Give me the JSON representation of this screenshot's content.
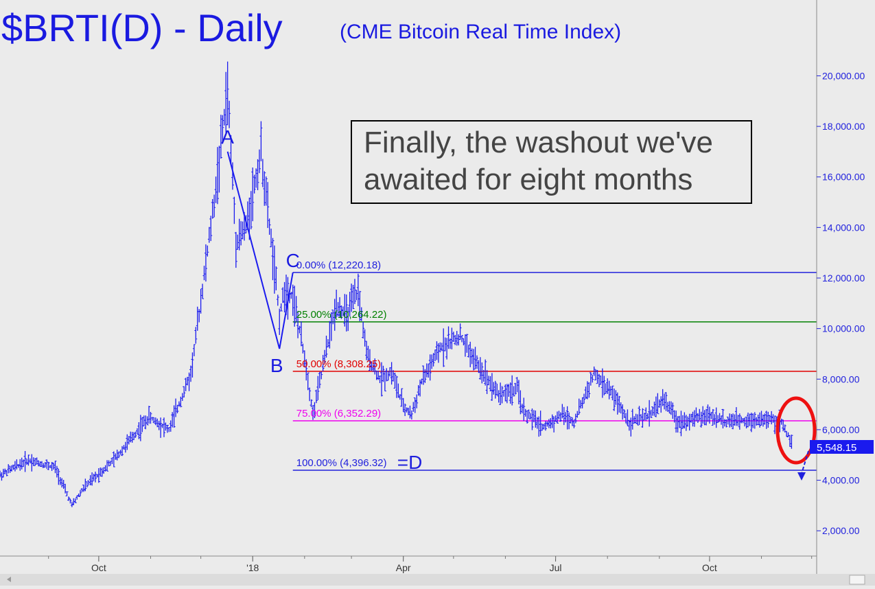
{
  "chart_data": {
    "type": "bar",
    "subtype": "ohlc",
    "title": "$BRTI(D) - Daily",
    "subtitle": "(CME Bitcoin Real Time Index)",
    "annotation_box": [
      "Finally, the washout we've",
      "awaited for eight months"
    ],
    "y_axis": {
      "position": "right",
      "range": [
        1000,
        23000
      ],
      "ticks": [
        2000,
        4000,
        6000,
        8000,
        10000,
        12000,
        14000,
        16000,
        18000,
        20000
      ],
      "tick_labels": [
        "2,000.00",
        "4,000.00",
        "6,000.00",
        "8,000.00",
        "10,000.00",
        "12,000.00",
        "14,000.00",
        "16,000.00",
        "18,000.00",
        "20,000.00"
      ]
    },
    "x_axis": {
      "range": [
        "2017-08-03",
        "2018-12-04"
      ],
      "tick_labels": [
        {
          "label": "Oct",
          "date": "2017-10-01"
        },
        {
          "label": "'18",
          "date": "2018-01-01"
        },
        {
          "label": "Apr",
          "date": "2018-04-01"
        },
        {
          "label": "Jul",
          "date": "2018-07-01"
        },
        {
          "label": "Oct",
          "date": "2018-10-01"
        }
      ]
    },
    "last_price": {
      "value": 5548.15,
      "label": "5,548.15"
    },
    "fib_levels": [
      {
        "label": "0.00% (12,220.18)",
        "value": 12220.18,
        "color": "#2020dd"
      },
      {
        "label": "25.00% (10,264.22)",
        "value": 10264.22,
        "color": "#008000"
      },
      {
        "label": "50.00% (8,308.25)",
        "value": 8308.25,
        "color": "#e00000"
      },
      {
        "label": "75.00% (6,352.29)",
        "value": 6352.29,
        "color": "#ee00ee"
      },
      {
        "label": "100.00% (4,396.32)",
        "value": 4396.32,
        "color": "#2020dd"
      }
    ],
    "d_label": "=D",
    "wave_points": [
      {
        "label": "A",
        "date": "2017-12-17",
        "value": 17000
      },
      {
        "label": "B",
        "date": "2018-01-17",
        "value": 9200
      },
      {
        "label": "C",
        "date": "2018-01-25",
        "value": 12220
      }
    ],
    "price_path": [
      {
        "date": "2017-08-03",
        "value": 4200
      },
      {
        "date": "2017-08-20",
        "value": 4800
      },
      {
        "date": "2017-09-05",
        "value": 4500
      },
      {
        "date": "2017-09-15",
        "value": 3000
      },
      {
        "date": "2017-09-22",
        "value": 3700
      },
      {
        "date": "2017-10-10",
        "value": 4800
      },
      {
        "date": "2017-10-31",
        "value": 6500
      },
      {
        "date": "2017-11-12",
        "value": 6000
      },
      {
        "date": "2017-11-25",
        "value": 8200
      },
      {
        "date": "2017-12-10",
        "value": 15500
      },
      {
        "date": "2017-12-17",
        "value": 19500
      },
      {
        "date": "2017-12-22",
        "value": 13500
      },
      {
        "date": "2017-12-28",
        "value": 14000
      },
      {
        "date": "2018-01-06",
        "value": 17000
      },
      {
        "date": "2018-01-12",
        "value": 13500
      },
      {
        "date": "2018-01-17",
        "value": 10500
      },
      {
        "date": "2018-01-20",
        "value": 11500
      },
      {
        "date": "2018-01-25",
        "value": 11300
      },
      {
        "date": "2018-02-02",
        "value": 8500
      },
      {
        "date": "2018-02-06",
        "value": 6600
      },
      {
        "date": "2018-02-12",
        "value": 8500
      },
      {
        "date": "2018-02-20",
        "value": 11000
      },
      {
        "date": "2018-02-26",
        "value": 10500
      },
      {
        "date": "2018-03-05",
        "value": 11500
      },
      {
        "date": "2018-03-10",
        "value": 9000
      },
      {
        "date": "2018-03-18",
        "value": 8000
      },
      {
        "date": "2018-03-25",
        "value": 8300
      },
      {
        "date": "2018-04-01",
        "value": 6900
      },
      {
        "date": "2018-04-06",
        "value": 6600
      },
      {
        "date": "2018-04-12",
        "value": 7900
      },
      {
        "date": "2018-04-24",
        "value": 9300
      },
      {
        "date": "2018-05-05",
        "value": 9700
      },
      {
        "date": "2018-05-15",
        "value": 8600
      },
      {
        "date": "2018-05-28",
        "value": 7400
      },
      {
        "date": "2018-06-08",
        "value": 7600
      },
      {
        "date": "2018-06-12",
        "value": 6700
      },
      {
        "date": "2018-06-24",
        "value": 6100
      },
      {
        "date": "2018-07-05",
        "value": 6600
      },
      {
        "date": "2018-07-12",
        "value": 6300
      },
      {
        "date": "2018-07-24",
        "value": 8200
      },
      {
        "date": "2018-08-04",
        "value": 7400
      },
      {
        "date": "2018-08-14",
        "value": 6300
      },
      {
        "date": "2018-08-24",
        "value": 6500
      },
      {
        "date": "2018-09-04",
        "value": 7200
      },
      {
        "date": "2018-09-12",
        "value": 6300
      },
      {
        "date": "2018-09-20",
        "value": 6400
      },
      {
        "date": "2018-10-01",
        "value": 6600
      },
      {
        "date": "2018-10-11",
        "value": 6300
      },
      {
        "date": "2018-10-25",
        "value": 6400
      },
      {
        "date": "2018-11-05",
        "value": 6400
      },
      {
        "date": "2018-11-13",
        "value": 6300
      },
      {
        "date": "2018-11-19",
        "value": 5500
      }
    ],
    "grid": false,
    "legend": "none"
  }
}
